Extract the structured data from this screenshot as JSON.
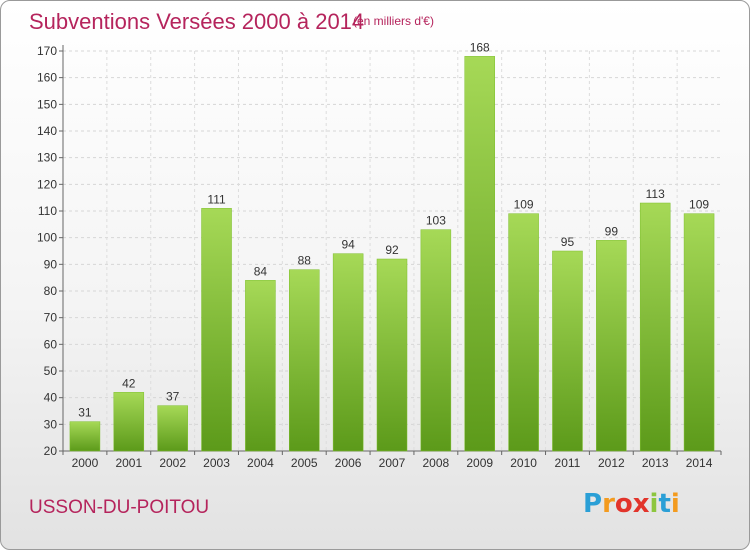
{
  "chart_data": {
    "type": "bar",
    "title": "Subventions Versées 2000 à 2014",
    "subtitle": "(en milliers d'€)",
    "categories": [
      "2000",
      "2001",
      "2002",
      "2003",
      "2004",
      "2005",
      "2006",
      "2007",
      "2008",
      "2009",
      "2010",
      "2011",
      "2012",
      "2013",
      "2014"
    ],
    "values": [
      31,
      42,
      37,
      111,
      84,
      88,
      94,
      92,
      103,
      168,
      109,
      95,
      99,
      113,
      109
    ],
    "xlabel": "",
    "ylabel": "",
    "ylim": [
      20,
      170
    ],
    "yticks": [
      20,
      30,
      40,
      50,
      60,
      70,
      80,
      90,
      100,
      110,
      120,
      130,
      140,
      150,
      160,
      170
    ],
    "grid": true,
    "bar_color": "#7cbf2b",
    "bar_color_light": "#a6d957",
    "bar_color_dark": "#5c9a1a"
  },
  "footer": {
    "commune": "USSON-DU-POITOU",
    "logo_letters": [
      "P",
      "r",
      "o",
      "x",
      "i",
      "t",
      "i"
    ]
  }
}
